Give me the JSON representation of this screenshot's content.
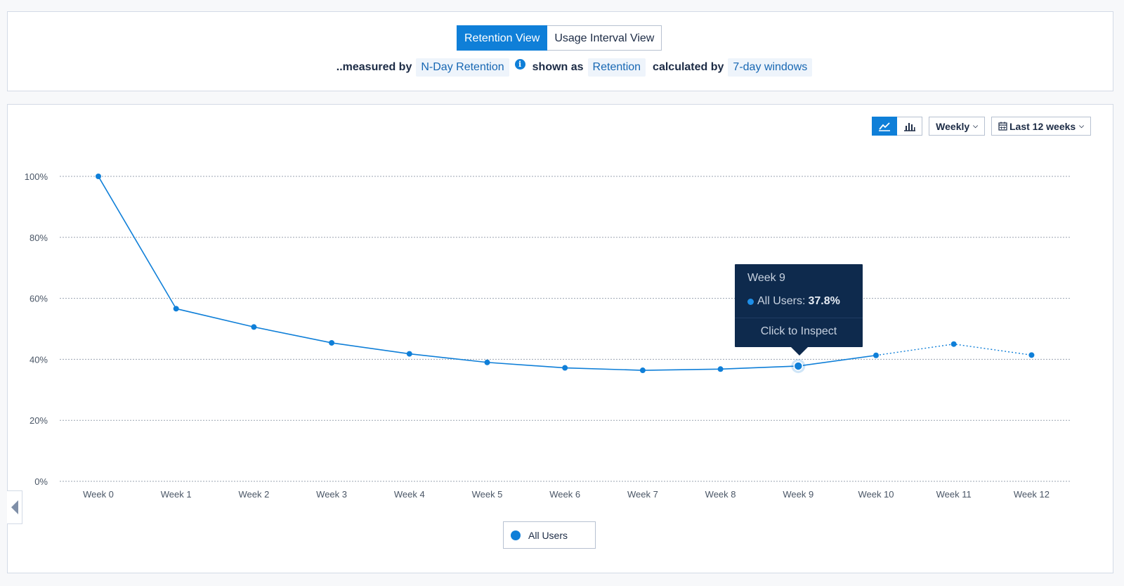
{
  "view_toggle": {
    "options": [
      "Retention View",
      "Usage Interval View"
    ],
    "active": "Retention View"
  },
  "measure": {
    "measured_by_label": "..measured by",
    "measured_by_value": "N-Day Retention",
    "info_icon": "info-icon",
    "shown_as_label": "shown as",
    "shown_as_value": "Retention",
    "calculated_by_label": "calculated by",
    "calculated_by_value": "7-day windows"
  },
  "controls": {
    "chart_types": [
      "line-chart-icon",
      "bar-chart-icon"
    ],
    "active_chart_type": "line-chart-icon",
    "interval": "Weekly",
    "date_range": "Last 12 weeks",
    "date_icon": "calendar-icon"
  },
  "tooltip": {
    "title": "Week 9",
    "series": "All Users:",
    "value": "37.8%",
    "action": "Click to Inspect"
  },
  "legend": {
    "label": "All Users"
  },
  "colors": {
    "accent": "#0f7fd8",
    "tooltip_bg": "#0e2a4d"
  },
  "chart_data": {
    "type": "line",
    "categories": [
      "Week 0",
      "Week 1",
      "Week 2",
      "Week 3",
      "Week 4",
      "Week 5",
      "Week 6",
      "Week 7",
      "Week 8",
      "Week 9",
      "Week 10",
      "Week 11",
      "Week 12"
    ],
    "series": [
      {
        "name": "All Users",
        "values": [
          100,
          56.6,
          50.6,
          45.4,
          41.8,
          39.0,
          37.2,
          36.4,
          36.8,
          37.8,
          41.3,
          45.0,
          41.4
        ],
        "complete_through": "Week 10",
        "highlighted": "Week 9"
      }
    ],
    "yticks": [
      "0%",
      "20%",
      "40%",
      "60%",
      "80%",
      "100%"
    ],
    "ylim": [
      0,
      100
    ],
    "grid": true,
    "legend": "bottom-center"
  }
}
